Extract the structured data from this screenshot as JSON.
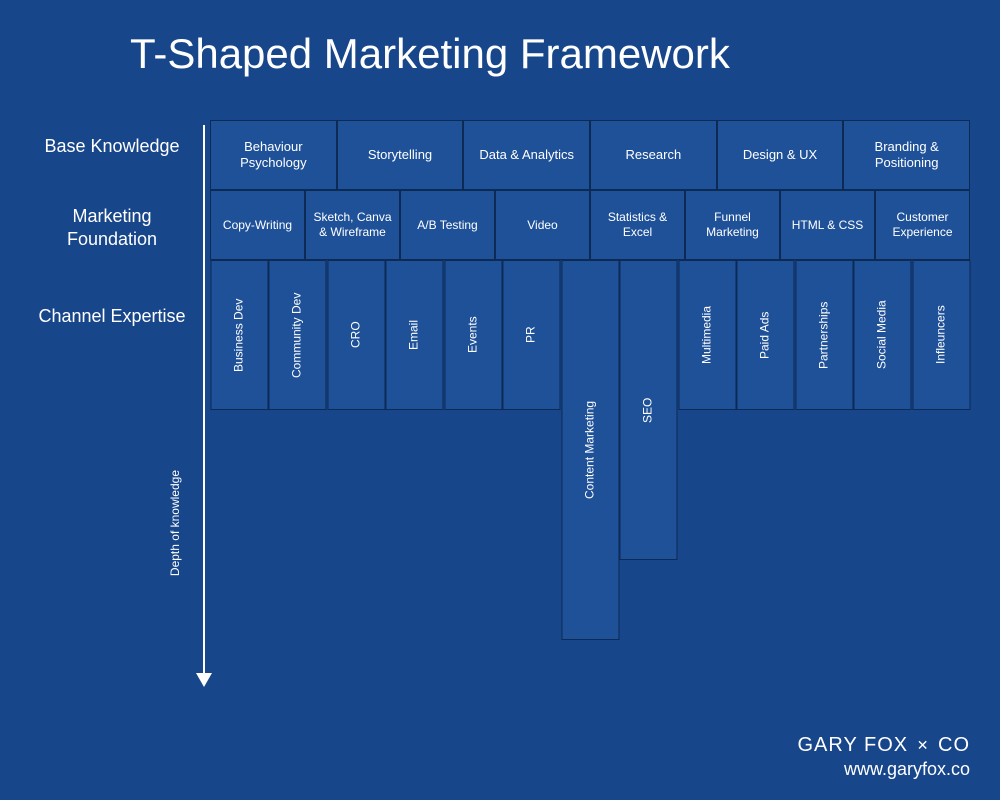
{
  "title": "T-Shaped Marketing Framework",
  "background_color": "#18468b",
  "cell_color": "#1f5199",
  "border_color": "#0d2a54",
  "text_color": "#ffffff",
  "row_labels": {
    "base": "Base Knowledge",
    "foundation": "Marketing Foundation",
    "channel": "Channel Expertise"
  },
  "depth_label": "Depth of knowledge",
  "row1": [
    "Behaviour Psychology",
    "Storytelling",
    "Data & Analytics",
    "Research",
    "Design & UX",
    "Branding & Positioning"
  ],
  "row2": [
    "Copy-Writing",
    "Sketch, Canva & Wireframe",
    "A/B Testing",
    "Video",
    "Statistics & Excel",
    "Funnel Marketing",
    "HTML & CSS",
    "Customer Experience"
  ],
  "row3": [
    {
      "label": "Business Dev",
      "height": "short"
    },
    {
      "label": "Community Dev",
      "height": "short"
    },
    {
      "label": "CRO",
      "height": "short"
    },
    {
      "label": "Email",
      "height": "short"
    },
    {
      "label": "Events",
      "height": "short"
    },
    {
      "label": "PR",
      "height": "short"
    },
    {
      "label": "Content Marketing",
      "height": "tall"
    },
    {
      "label": "SEO",
      "height": "mid"
    },
    {
      "label": "Multimedia",
      "height": "short"
    },
    {
      "label": "Paid Ads",
      "height": "short"
    },
    {
      "label": "Partnerships",
      "height": "short"
    },
    {
      "label": "Social Media",
      "height": "short"
    },
    {
      "label": "Infleuncers",
      "height": "short"
    }
  ],
  "footer": {
    "brand_left": "GARY FOX",
    "brand_right": "CO",
    "url": "www.garyfox.co"
  }
}
